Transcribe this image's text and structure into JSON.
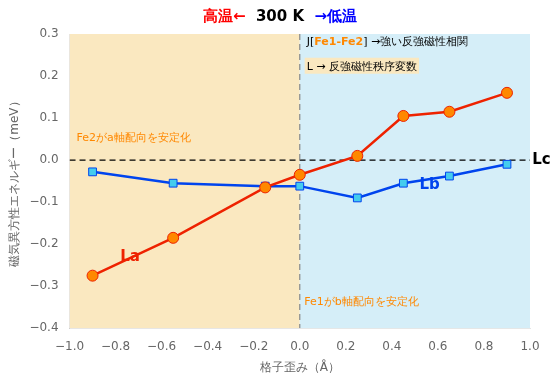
{
  "chart_data": {
    "type": "line",
    "title": [
      {
        "text": "高温←",
        "color": "red"
      },
      {
        "text": "  300 K  ",
        "color": "black"
      },
      {
        "text": "→低温",
        "color": "blue"
      }
    ],
    "x_label": "格子歪み（Å）",
    "y_label": "磁気異方性エネルギー（meV）",
    "x": [
      -0.9,
      -0.55,
      -0.15,
      0.0,
      0.25,
      0.45,
      0.65,
      0.9
    ],
    "series": [
      {
        "color": "#EE2200",
        "marker_color": "#FF8800",
        "marker": "circle",
        "line_style": "solid",
        "values": [
          -0.275,
          -0.185,
          -0.065,
          -0.035,
          0.01,
          0.105,
          0.115,
          0.16
        ]
      },
      {
        "color": "#0044EE",
        "marker_color": "#44CCEE",
        "marker": "square",
        "line_style": "solid",
        "values": [
          -0.028,
          -0.055,
          -0.062,
          -0.062,
          -0.09,
          -0.055,
          -0.038,
          -0.01
        ]
      }
    ],
    "xlim": [
      -1.0,
      1.0
    ],
    "ylim": [
      -0.4,
      0.3
    ],
    "xticks": [
      {
        "value": -1.0,
        "label": "−1.0"
      },
      {
        "value": -0.8,
        "label": "−0.8"
      },
      {
        "value": -0.6,
        "label": "−0.6"
      },
      {
        "value": -0.4,
        "label": "−0.4"
      },
      {
        "value": -0.2,
        "label": "−0.2"
      },
      {
        "value": 0.0,
        "label": "0.0"
      },
      {
        "value": 0.2,
        "label": "0.2"
      },
      {
        "value": 0.4,
        "label": "0.4"
      },
      {
        "value": 0.6,
        "label": "0.6"
      },
      {
        "value": 0.8,
        "label": "0.8"
      },
      {
        "value": 1.0,
        "label": "1.0"
      }
    ],
    "yticks": [
      {
        "value": -0.4,
        "label": "−0.4"
      },
      {
        "value": -0.3,
        "label": "−0.3"
      },
      {
        "value": -0.2,
        "label": "−0.2"
      },
      {
        "value": -0.1,
        "label": "−0.1"
      },
      {
        "value": 0.0,
        "label": "0.0"
      },
      {
        "value": 0.1,
        "label": "0.1"
      },
      {
        "value": 0.2,
        "label": "0.2"
      },
      {
        "value": 0.3,
        "label": "0.3"
      }
    ],
    "grid": false,
    "shaded_regions": [
      {
        "from": -1.0,
        "to": 0.0,
        "color": "#FAE8C0"
      },
      {
        "from": 0.0,
        "to": 1.0,
        "color": "#D5EEF8"
      }
    ],
    "reference_lines": [
      {
        "axis": "y",
        "value": 0.0,
        "color": "#000000",
        "line_style": "dashed"
      },
      {
        "axis": "x",
        "value": 0.0,
        "color": "#888888",
        "line_style": "dashed"
      }
    ],
    "annotations": [
      {
        "text": "La",
        "x": -0.78,
        "y": -0.24,
        "color": "#EE2200",
        "bold": true
      },
      {
        "text": "Lb",
        "x": 0.52,
        "y": -0.068,
        "color": "#0044EE",
        "bold": true
      },
      {
        "text": "Lc",
        "x": 1.01,
        "y": -0.01,
        "color": "black",
        "bold": true
      },
      {
        "x": 0.03,
        "y": 0.275,
        "runs": [
          {
            "text": "J[",
            "color": "black"
          },
          {
            "text": "Fe1-Fe2",
            "color": "#FF8800",
            "bold": true
          },
          {
            "text": "] →強い反強磁性相関",
            "color": "black"
          }
        ]
      },
      {
        "text": "L → 反強磁性秩序変数",
        "x": 0.03,
        "y": 0.215,
        "color": "black",
        "background": "#FAE8C0"
      },
      {
        "text": "Fe2がa軸配向を安定化",
        "x": -0.97,
        "y": 0.045,
        "color": "#FF8800"
      },
      {
        "text": "Fe1がb軸配向を安定化",
        "x": 0.02,
        "y": -0.345,
        "color": "#FF8800"
      }
    ]
  }
}
